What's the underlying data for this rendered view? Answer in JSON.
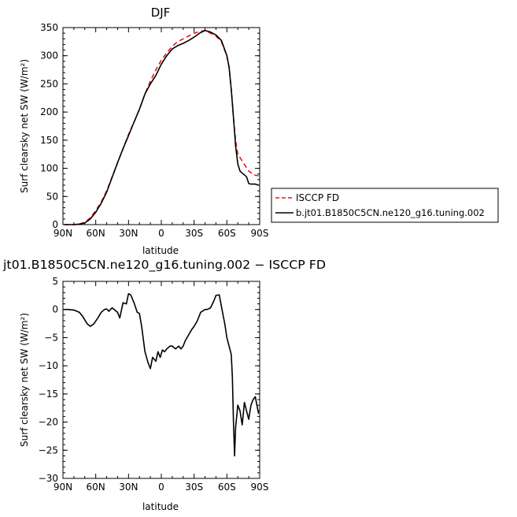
{
  "chart_data": [
    {
      "type": "line",
      "title": "DJF",
      "xlabel": "latitude",
      "ylabel": "Surf clearsky net SW (W/m²)",
      "xlim": [
        -90,
        90
      ],
      "ylim": [
        0,
        350
      ],
      "x_ticks": [
        -90,
        -60,
        -30,
        0,
        30,
        60,
        90
      ],
      "x_tick_labels": [
        "90N",
        "60N",
        "30N",
        "0",
        "30S",
        "60S",
        "90S"
      ],
      "y_ticks": [
        0,
        50,
        100,
        150,
        200,
        250,
        300,
        350
      ],
      "y_tick_labels": [
        "0",
        "50",
        "100",
        "150",
        "200",
        "250",
        "300",
        "350"
      ],
      "legend_position": "right",
      "series": [
        {
          "name": "ISCCP FD",
          "color": "#e8161b",
          "dashed": true,
          "x": [
            -89,
            -85,
            -80,
            -75,
            -70,
            -65,
            -60,
            -55,
            -50,
            -45,
            -40,
            -35,
            -30,
            -25,
            -20,
            -15,
            -10,
            -5,
            0,
            5,
            10,
            15,
            20,
            25,
            30,
            35,
            40,
            45,
            50,
            55,
            60,
            62,
            64,
            66,
            68,
            70,
            75,
            80,
            85,
            89
          ],
          "y": [
            0,
            0,
            0,
            1,
            4,
            12,
            25,
            40,
            60,
            85,
            110,
            135,
            160,
            182,
            205,
            232,
            255,
            275,
            292,
            305,
            317,
            325,
            330,
            335,
            340,
            343,
            345,
            340,
            335,
            325,
            300,
            280,
            240,
            190,
            150,
            125,
            110,
            95,
            88,
            87
          ]
        },
        {
          "name": "b.jt01.B1850C5CN.ne120_g16.tuning.002",
          "color": "#000000",
          "dashed": false,
          "x": [
            -89,
            -85,
            -80,
            -75,
            -70,
            -65,
            -60,
            -55,
            -50,
            -45,
            -40,
            -35,
            -30,
            -25,
            -20,
            -15,
            -10,
            -5,
            0,
            5,
            10,
            15,
            20,
            25,
            30,
            35,
            40,
            45,
            50,
            55,
            60,
            62,
            64,
            66,
            68,
            70,
            72,
            75,
            78,
            80,
            82,
            84,
            86,
            89
          ],
          "y": [
            0,
            0,
            0,
            1,
            3,
            10,
            22,
            38,
            58,
            84,
            110,
            135,
            158,
            182,
            205,
            232,
            250,
            265,
            285,
            300,
            312,
            318,
            322,
            327,
            333,
            340,
            345,
            342,
            337,
            327,
            300,
            280,
            240,
            190,
            140,
            108,
            95,
            90,
            85,
            73,
            72,
            72,
            72,
            70
          ]
        }
      ]
    },
    {
      "type": "line",
      "title": "jt01.B1850C5CN.ne120_g16.tuning.002 − ISCCP FD",
      "xlabel": "latitude",
      "ylabel": "Surf clearsky net SW (W/m²)",
      "xlim": [
        -90,
        90
      ],
      "ylim": [
        -30,
        5
      ],
      "x_ticks": [
        -90,
        -60,
        -30,
        0,
        30,
        60,
        90
      ],
      "x_tick_labels": [
        "90N",
        "60N",
        "30N",
        "0",
        "30S",
        "60S",
        "90S"
      ],
      "y_ticks": [
        -30,
        -25,
        -20,
        -15,
        -10,
        -5,
        0,
        5
      ],
      "y_tick_labels": [
        "−30",
        "−25",
        "−20",
        "−15",
        "−10",
        "−5",
        "0",
        "5"
      ],
      "series": [
        {
          "name": "",
          "color": "#000000",
          "dashed": false,
          "x": [
            -89,
            -85,
            -80,
            -75,
            -72,
            -68,
            -65,
            -62,
            -58,
            -55,
            -52,
            -50,
            -48,
            -45,
            -42,
            -40,
            -38,
            -35,
            -32,
            -30,
            -28,
            -25,
            -22,
            -20,
            -18,
            -15,
            -12,
            -10,
            -8,
            -5,
            -3,
            -1,
            1,
            3,
            5,
            8,
            10,
            13,
            16,
            18,
            20,
            22,
            25,
            28,
            30,
            33,
            36,
            40,
            42,
            45,
            48,
            50,
            53,
            56,
            58,
            60,
            62,
            64,
            65,
            66,
            67,
            68,
            70,
            72,
            74,
            76,
            78,
            80,
            82,
            84,
            86,
            88,
            89
          ],
          "y": [
            0,
            0,
            -0.1,
            -0.5,
            -1.2,
            -2.5,
            -3,
            -2.6,
            -1.5,
            -0.5,
            0,
            0.1,
            -0.3,
            0.3,
            -0.2,
            -0.5,
            -1.5,
            1.2,
            1,
            2.8,
            2.6,
            1.2,
            -0.5,
            -0.7,
            -3,
            -7.5,
            -9.5,
            -10.5,
            -8.5,
            -9.2,
            -7.5,
            -8.5,
            -7.2,
            -7.5,
            -7,
            -6.5,
            -6.5,
            -7,
            -6.5,
            -7,
            -6.5,
            -5.5,
            -4.5,
            -3.5,
            -3,
            -2,
            -0.5,
            0,
            0,
            0.3,
            1.5,
            2.5,
            2.6,
            -0.5,
            -2.5,
            -5,
            -6.5,
            -8,
            -12,
            -20,
            -26,
            -21,
            -17,
            -18,
            -20.5,
            -16.5,
            -18,
            -19.5,
            -17,
            -16,
            -15.5,
            -17.5,
            -18.5
          ]
        }
      ]
    }
  ]
}
